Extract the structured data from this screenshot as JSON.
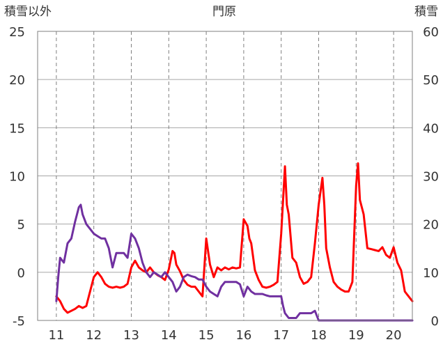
{
  "chart_data": {
    "type": "line",
    "title": "門原",
    "ylabel_left": "積雪以外",
    "ylabel_right": "積雪",
    "x_ticks": [
      11,
      12,
      13,
      14,
      15,
      16,
      17,
      18,
      19,
      20
    ],
    "xlim": [
      10.5,
      20.5
    ],
    "y_left_lim": [
      -5,
      25
    ],
    "y_left_ticks": [
      25,
      20,
      15,
      10,
      5,
      0,
      -5
    ],
    "y_right_lim": [
      0,
      60
    ],
    "y_right_ticks": [
      60,
      50,
      40,
      30,
      20,
      10,
      0
    ],
    "grid": true,
    "series": [
      {
        "axis": "left",
        "color": "#ff0000",
        "points": [
          [
            11.0,
            -2.5
          ],
          [
            11.1,
            -3.0
          ],
          [
            11.2,
            -3.8
          ],
          [
            11.3,
            -4.2
          ],
          [
            11.4,
            -4.0
          ],
          [
            11.5,
            -3.8
          ],
          [
            11.6,
            -3.5
          ],
          [
            11.7,
            -3.7
          ],
          [
            11.8,
            -3.5
          ],
          [
            11.9,
            -2.0
          ],
          [
            12.0,
            -0.5
          ],
          [
            12.1,
            0.0
          ],
          [
            12.2,
            -0.5
          ],
          [
            12.3,
            -1.2
          ],
          [
            12.4,
            -1.5
          ],
          [
            12.5,
            -1.6
          ],
          [
            12.6,
            -1.5
          ],
          [
            12.7,
            -1.6
          ],
          [
            12.8,
            -1.5
          ],
          [
            12.9,
            -1.2
          ],
          [
            13.0,
            0.5
          ],
          [
            13.1,
            1.2
          ],
          [
            13.2,
            0.5
          ],
          [
            13.3,
            0.2
          ],
          [
            13.4,
            0.0
          ],
          [
            13.5,
            0.5
          ],
          [
            13.6,
            0.0
          ],
          [
            13.7,
            -0.3
          ],
          [
            13.8,
            -0.5
          ],
          [
            13.9,
            -0.8
          ],
          [
            14.0,
            0.3
          ],
          [
            14.1,
            2.2
          ],
          [
            14.15,
            2.0
          ],
          [
            14.2,
            0.8
          ],
          [
            14.3,
            0.1
          ],
          [
            14.4,
            -0.8
          ],
          [
            14.5,
            -1.3
          ],
          [
            14.6,
            -1.5
          ],
          [
            14.7,
            -1.5
          ],
          [
            14.8,
            -2.0
          ],
          [
            14.9,
            -2.5
          ],
          [
            15.0,
            3.5
          ],
          [
            15.1,
            0.8
          ],
          [
            15.2,
            -0.5
          ],
          [
            15.3,
            0.5
          ],
          [
            15.4,
            0.2
          ],
          [
            15.5,
            0.5
          ],
          [
            15.6,
            0.3
          ],
          [
            15.7,
            0.5
          ],
          [
            15.8,
            0.4
          ],
          [
            15.9,
            0.5
          ],
          [
            16.0,
            5.5
          ],
          [
            16.1,
            4.8
          ],
          [
            16.15,
            3.5
          ],
          [
            16.2,
            3.0
          ],
          [
            16.3,
            0.2
          ],
          [
            16.4,
            -0.8
          ],
          [
            16.5,
            -1.5
          ],
          [
            16.6,
            -1.6
          ],
          [
            16.7,
            -1.5
          ],
          [
            16.8,
            -1.3
          ],
          [
            16.9,
            -1.0
          ],
          [
            17.0,
            4.0
          ],
          [
            17.1,
            11.0
          ],
          [
            17.15,
            7.0
          ],
          [
            17.2,
            6.0
          ],
          [
            17.3,
            1.5
          ],
          [
            17.4,
            1.0
          ],
          [
            17.5,
            -0.5
          ],
          [
            17.6,
            -1.2
          ],
          [
            17.7,
            -1.0
          ],
          [
            17.8,
            -0.5
          ],
          [
            17.9,
            3.0
          ],
          [
            18.0,
            7.0
          ],
          [
            18.1,
            9.8
          ],
          [
            18.15,
            7.0
          ],
          [
            18.2,
            2.5
          ],
          [
            18.3,
            0.5
          ],
          [
            18.4,
            -1.0
          ],
          [
            18.5,
            -1.5
          ],
          [
            18.6,
            -1.8
          ],
          [
            18.7,
            -2.0
          ],
          [
            18.8,
            -2.0
          ],
          [
            18.9,
            -1.0
          ],
          [
            19.0,
            9.0
          ],
          [
            19.05,
            11.3
          ],
          [
            19.1,
            7.5
          ],
          [
            19.2,
            6.0
          ],
          [
            19.3,
            2.5
          ],
          [
            19.4,
            2.4
          ],
          [
            19.5,
            2.3
          ],
          [
            19.6,
            2.2
          ],
          [
            19.7,
            2.6
          ],
          [
            19.8,
            1.8
          ],
          [
            19.9,
            1.5
          ],
          [
            20.0,
            2.6
          ],
          [
            20.1,
            1.0
          ],
          [
            20.2,
            0.2
          ],
          [
            20.3,
            -2.0
          ],
          [
            20.4,
            -2.5
          ],
          [
            20.5,
            -3.0
          ]
        ]
      },
      {
        "axis": "right",
        "color": "#7030a0",
        "points": [
          [
            11.0,
            4.0
          ],
          [
            11.05,
            9.0
          ],
          [
            11.1,
            13.0
          ],
          [
            11.2,
            12.0
          ],
          [
            11.3,
            16.0
          ],
          [
            11.4,
            17.0
          ],
          [
            11.5,
            20.5
          ],
          [
            11.6,
            23.5
          ],
          [
            11.65,
            24.0
          ],
          [
            11.7,
            22.0
          ],
          [
            11.8,
            20.0
          ],
          [
            11.9,
            19.0
          ],
          [
            12.0,
            18.0
          ],
          [
            12.1,
            17.5
          ],
          [
            12.2,
            17.0
          ],
          [
            12.3,
            17.0
          ],
          [
            12.4,
            15.0
          ],
          [
            12.5,
            11.0
          ],
          [
            12.6,
            14.0
          ],
          [
            12.7,
            14.0
          ],
          [
            12.8,
            14.0
          ],
          [
            12.9,
            13.0
          ],
          [
            13.0,
            18.0
          ],
          [
            13.1,
            17.0
          ],
          [
            13.2,
            15.0
          ],
          [
            13.3,
            12.0
          ],
          [
            13.4,
            10.0
          ],
          [
            13.5,
            9.0
          ],
          [
            13.6,
            10.0
          ],
          [
            13.7,
            9.5
          ],
          [
            13.8,
            9.0
          ],
          [
            13.9,
            10.0
          ],
          [
            14.0,
            9.0
          ],
          [
            14.1,
            8.0
          ],
          [
            14.2,
            6.0
          ],
          [
            14.3,
            7.0
          ],
          [
            14.4,
            9.0
          ],
          [
            14.5,
            9.5
          ],
          [
            14.6,
            9.2
          ],
          [
            14.7,
            9.0
          ],
          [
            14.8,
            8.5
          ],
          [
            14.9,
            8.5
          ],
          [
            15.0,
            7.0
          ],
          [
            15.1,
            6.0
          ],
          [
            15.2,
            5.5
          ],
          [
            15.3,
            5.0
          ],
          [
            15.4,
            7.0
          ],
          [
            15.5,
            8.0
          ],
          [
            15.6,
            8.0
          ],
          [
            15.7,
            8.0
          ],
          [
            15.8,
            8.0
          ],
          [
            15.9,
            7.5
          ],
          [
            16.0,
            5.0
          ],
          [
            16.1,
            7.0
          ],
          [
            16.2,
            6.0
          ],
          [
            16.3,
            5.5
          ],
          [
            16.4,
            5.5
          ],
          [
            16.5,
            5.5
          ],
          [
            16.6,
            5.2
          ],
          [
            16.7,
            5.0
          ],
          [
            16.8,
            5.0
          ],
          [
            16.9,
            5.0
          ],
          [
            17.0,
            5.0
          ],
          [
            17.05,
            3.0
          ],
          [
            17.1,
            1.5
          ],
          [
            17.2,
            0.5
          ],
          [
            17.3,
            0.5
          ],
          [
            17.4,
            0.5
          ],
          [
            17.5,
            1.5
          ],
          [
            17.6,
            1.5
          ],
          [
            17.7,
            1.5
          ],
          [
            17.8,
            1.5
          ],
          [
            17.9,
            2.0
          ],
          [
            18.0,
            0.0
          ],
          [
            18.5,
            0.0
          ],
          [
            19.0,
            0.0
          ],
          [
            19.5,
            0.0
          ],
          [
            20.0,
            0.0
          ],
          [
            20.5,
            0.0
          ]
        ]
      }
    ]
  }
}
